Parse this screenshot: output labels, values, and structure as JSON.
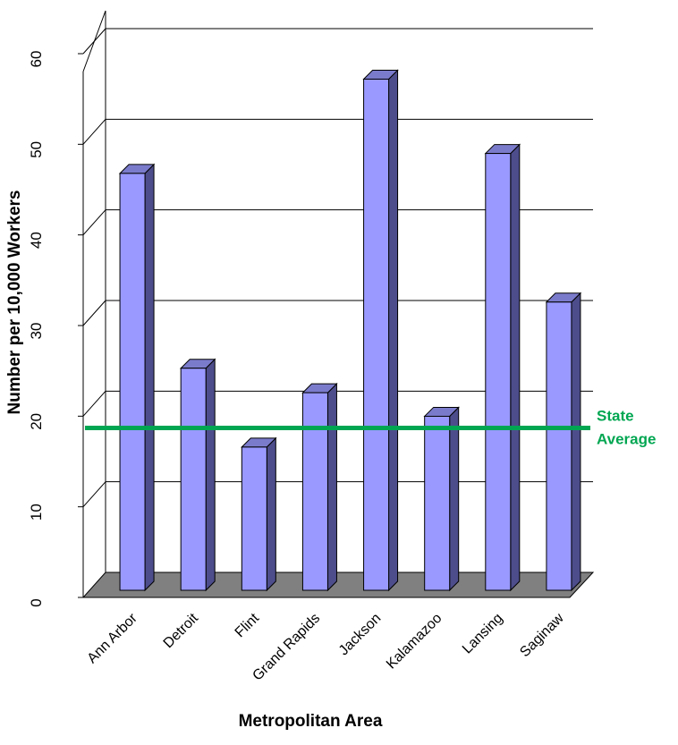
{
  "chart_data": {
    "type": "bar",
    "categories": [
      "Ann Arbor",
      "Detroit",
      "Flint",
      "Grand Rapids",
      "Jackson",
      "Kalamazoo",
      "Lansing",
      "Saginaw"
    ],
    "series": [
      {
        "values": [
          46,
          24.5,
          15.8,
          21.8,
          56.4,
          19.2,
          48.2,
          31.8
        ]
      }
    ],
    "xlabel": "Metropolitan Area",
    "ylabel": "Number per 10,000 Workers",
    "ylim": [
      0,
      60
    ],
    "yticks": [
      "0",
      "10",
      "20",
      "30",
      "40",
      "50",
      "60"
    ],
    "grid": true,
    "reference_line": {
      "label_lines": [
        "State",
        "Average"
      ],
      "value": 18.5,
      "color": "#00a651"
    },
    "colors": {
      "bar_front": "#9999ff",
      "bar_side": "#4d4d8c",
      "bar_top": "#7b7bcc",
      "floor": "#808080",
      "grid": "#000000"
    }
  }
}
